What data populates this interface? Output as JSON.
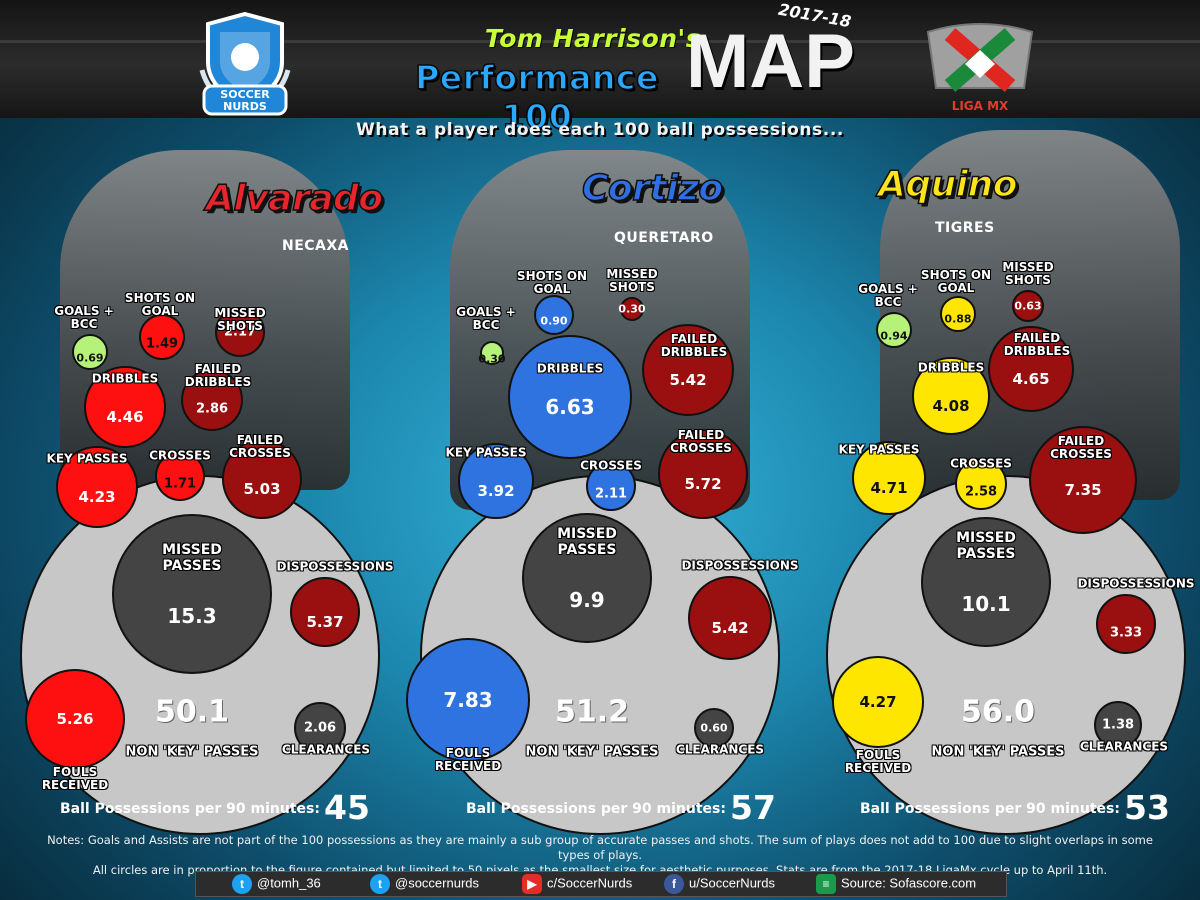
{
  "header": {
    "author": "Tom Harrison's",
    "title_line": "Performance 100",
    "title_map": "MAP",
    "season": "2017-18",
    "subtitle": "What a player does each 100 ball possessions...",
    "logo_left_text": "SOCCER NURDS",
    "logo_right_text": "LIGA MX"
  },
  "labels": {
    "goals_bcc": "GOALS + BCC",
    "shots_on_goal": "SHOTS ON GOAL",
    "missed_shots": "MISSED SHOTS",
    "dribbles": "DRIBBLES",
    "failed_dribbles": "FAILED DRIBBLES",
    "key_passes": "KEY PASSES",
    "crosses": "CROSSES",
    "failed_crosses": "FAILED CROSSES",
    "missed_passes": "MISSED PASSES",
    "dispossessions": "DISPOSSESSIONS",
    "fouls_received": "FOULS RECEIVED",
    "non_key_passes": "NON 'KEY' PASSES",
    "clearances": "CLEARANCES",
    "possessions_per_90": "Ball Possessions per 90 minutes:"
  },
  "players": [
    {
      "name": "Alvarado",
      "club": "NECAXA",
      "color": "#ff1010",
      "dark": "#9a0f10",
      "name_color": "#e8242c",
      "goals_bcc": "0.69",
      "shots_on_goal": "1.49",
      "missed_shots": "2.17",
      "dribbles": "4.46",
      "failed_dribbles": "2.86",
      "key_passes": "4.23",
      "crosses": "1.71",
      "failed_crosses": "5.03",
      "missed_passes": "15.3",
      "dispossessions": "5.37",
      "fouls_received": "5.26",
      "non_key_passes": "50.1",
      "clearances": "2.06",
      "possessions_per_90": "45"
    },
    {
      "name": "Cortizo",
      "club": "QUERETARO",
      "color": "#2f73e0",
      "dark": "#9a0f10",
      "name_color": "#2f6fe4",
      "goals_bcc": "0.30",
      "shots_on_goal": "0.90",
      "missed_shots": "0.30",
      "dribbles": "6.63",
      "failed_dribbles": "5.42",
      "key_passes": "3.92",
      "crosses": "2.11",
      "failed_crosses": "5.72",
      "missed_passes": "9.9",
      "dispossessions": "5.42",
      "fouls_received": "7.83",
      "non_key_passes": "51.2",
      "clearances": "0.60",
      "possessions_per_90": "57"
    },
    {
      "name": "Aquino",
      "club": "TIGRES",
      "color": "#ffe600",
      "dark": "#9a0f10",
      "name_color": "#ffe41a",
      "goals_bcc": "0.94",
      "shots_on_goal": "0.88",
      "missed_shots": "0.63",
      "dribbles": "4.08",
      "failed_dribbles": "4.65",
      "key_passes": "4.71",
      "crosses": "2.58",
      "failed_crosses": "7.35",
      "missed_passes": "10.1",
      "dispossessions": "3.33",
      "fouls_received": "4.27",
      "non_key_passes": "56.0",
      "clearances": "1.38",
      "possessions_per_90": "53"
    }
  ],
  "notes": {
    "line1": "Notes: Goals and Assists are not part of the 100 possessions as they are mainly a sub group of accurate passes and shots. The sum of plays does not add to 100 due to slight overlaps in some types of plays.",
    "line2": "All circles are in proportion to the figure contained but limited to 50 pixels as the smallest size for aesthetic purposes. Stats are from the 2017-18 LigaMx cycle up to April 11th."
  },
  "social": {
    "twitter1": "@tomh_36",
    "twitter2": "@soccernurds",
    "youtube": "c/SoccerNurds",
    "facebook": "u/SoccerNurds",
    "source": "Source: Sofascore.com"
  },
  "colors": {
    "green": "#b6f27a",
    "gray": "#444444",
    "light_gray": "#c7c7c7"
  }
}
